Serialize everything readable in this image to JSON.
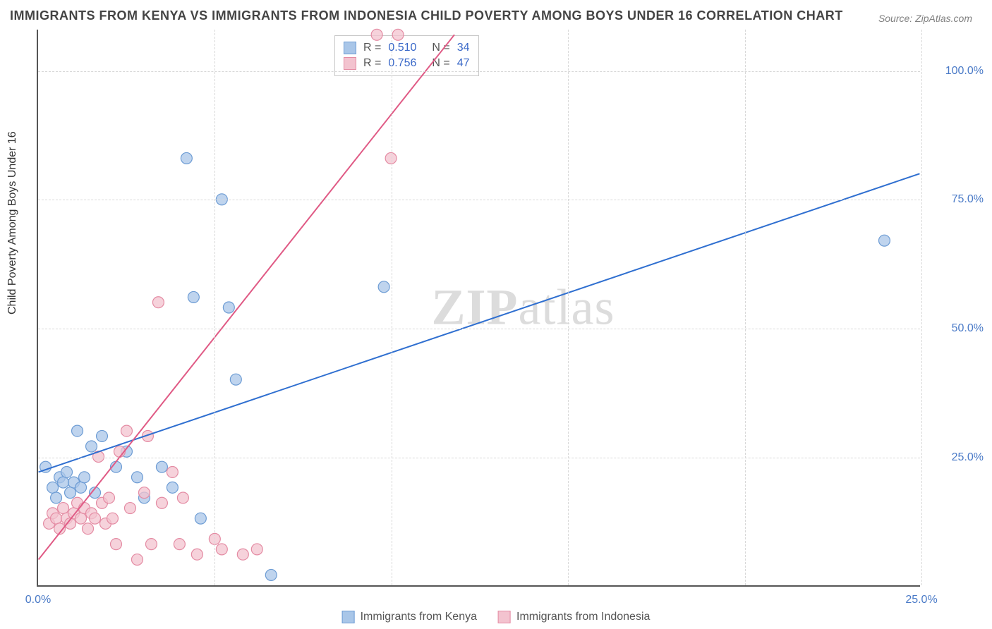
{
  "title": "IMMIGRANTS FROM KENYA VS IMMIGRANTS FROM INDONESIA CHILD POVERTY AMONG BOYS UNDER 16 CORRELATION CHART",
  "source": "Source: ZipAtlas.com",
  "watermark_a": "ZIP",
  "watermark_b": "atlas",
  "yaxis_title": "Child Poverty Among Boys Under 16",
  "xlim": [
    0,
    25
  ],
  "ylim": [
    0,
    108
  ],
  "x_ticks": [
    0,
    5,
    10,
    15,
    20,
    25
  ],
  "x_tick_labels": {
    "0": "0.0%",
    "25": "25.0%"
  },
  "y_ticks": [
    25,
    50,
    75,
    100
  ],
  "y_tick_labels": {
    "25": "25.0%",
    "50": "50.0%",
    "75": "75.0%",
    "100": "100.0%"
  },
  "series": [
    {
      "name": "Immigrants from Kenya",
      "color_fill": "#a9c6e8",
      "color_stroke": "#6d9cd4",
      "line_color": "#2f6fd0",
      "r_value": "0.510",
      "n_value": "34",
      "trend": {
        "x1": 0,
        "y1": 22,
        "x2": 25,
        "y2": 80
      },
      "points": [
        [
          0.2,
          23
        ],
        [
          0.4,
          19
        ],
        [
          0.5,
          17
        ],
        [
          0.6,
          21
        ],
        [
          0.7,
          20
        ],
        [
          0.8,
          22
        ],
        [
          0.9,
          18
        ],
        [
          1.0,
          20
        ],
        [
          1.1,
          30
        ],
        [
          1.2,
          19
        ],
        [
          1.3,
          21
        ],
        [
          1.5,
          27
        ],
        [
          1.6,
          18
        ],
        [
          1.8,
          29
        ],
        [
          2.2,
          23
        ],
        [
          2.5,
          26
        ],
        [
          2.8,
          21
        ],
        [
          3.0,
          17
        ],
        [
          3.5,
          23
        ],
        [
          3.8,
          19
        ],
        [
          4.2,
          83
        ],
        [
          4.4,
          56
        ],
        [
          4.6,
          13
        ],
        [
          5.2,
          75
        ],
        [
          5.4,
          54
        ],
        [
          5.6,
          40
        ],
        [
          6.6,
          2
        ],
        [
          9.8,
          58
        ],
        [
          24.0,
          67
        ]
      ]
    },
    {
      "name": "Immigrants from Indonesia",
      "color_fill": "#f3c3cf",
      "color_stroke": "#e48ba3",
      "line_color": "#e05a85",
      "r_value": "0.756",
      "n_value": "47",
      "trend": {
        "x1": 0,
        "y1": 5,
        "x2": 11.8,
        "y2": 107
      },
      "points": [
        [
          0.3,
          12
        ],
        [
          0.4,
          14
        ],
        [
          0.5,
          13
        ],
        [
          0.6,
          11
        ],
        [
          0.7,
          15
        ],
        [
          0.8,
          13
        ],
        [
          0.9,
          12
        ],
        [
          1.0,
          14
        ],
        [
          1.1,
          16
        ],
        [
          1.2,
          13
        ],
        [
          1.3,
          15
        ],
        [
          1.4,
          11
        ],
        [
          1.5,
          14
        ],
        [
          1.6,
          13
        ],
        [
          1.7,
          25
        ],
        [
          1.8,
          16
        ],
        [
          1.9,
          12
        ],
        [
          2.0,
          17
        ],
        [
          2.1,
          13
        ],
        [
          2.2,
          8
        ],
        [
          2.3,
          26
        ],
        [
          2.5,
          30
        ],
        [
          2.6,
          15
        ],
        [
          2.8,
          5
        ],
        [
          3.0,
          18
        ],
        [
          3.1,
          29
        ],
        [
          3.2,
          8
        ],
        [
          3.4,
          55
        ],
        [
          3.5,
          16
        ],
        [
          3.8,
          22
        ],
        [
          4.0,
          8
        ],
        [
          4.1,
          17
        ],
        [
          4.5,
          6
        ],
        [
          5.0,
          9
        ],
        [
          5.2,
          7
        ],
        [
          5.8,
          6
        ],
        [
          6.2,
          7
        ],
        [
          9.6,
          107
        ],
        [
          10.0,
          83
        ],
        [
          10.2,
          107
        ]
      ]
    }
  ],
  "background_color": "#ffffff",
  "grid_color": "#d8d8d8",
  "axis_color": "#555555",
  "tick_label_color": "#4a7ac7",
  "marker_radius": 8,
  "line_width": 2
}
